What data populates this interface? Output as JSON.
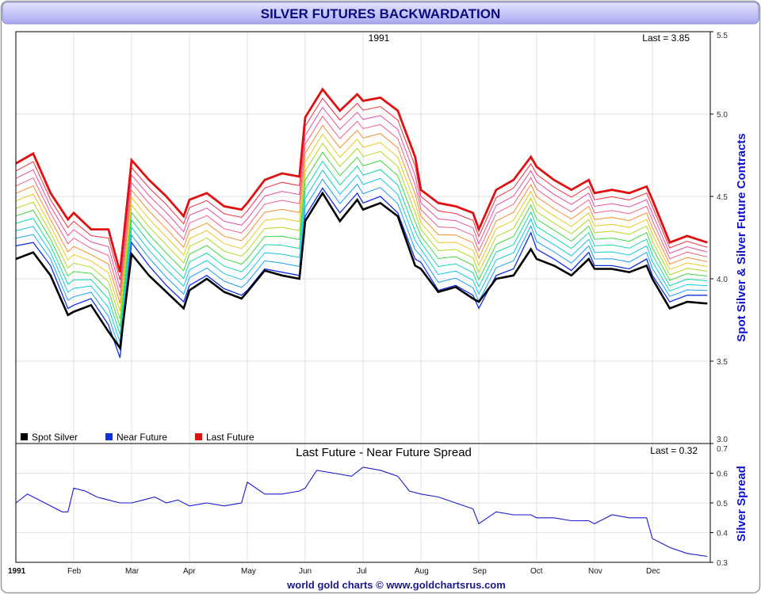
{
  "page": {
    "title": "SILVER FUTURES BACKWARDATION",
    "footer": "world gold charts © www.goldchartsrus.com"
  },
  "colors": {
    "title_text": "#0b0b80",
    "title_bar_top": "#e4e4ff",
    "title_bar_bottom": "#a9a9f0",
    "axis_label": "#1212cc",
    "spot": "#000000",
    "near": "#1030e0",
    "last": "#e01010",
    "spread": "#1a1ad0",
    "bands": [
      "#1aa0f0",
      "#10c8e0",
      "#10d8a8",
      "#40d840",
      "#b0d820",
      "#e8c820",
      "#f09030",
      "#f06080",
      "#e050a0",
      "#f03040"
    ]
  },
  "chart_data": [
    {
      "type": "line",
      "year_label": "1991",
      "last_label": "Last = 3.85",
      "ylabel": "Spot Silver & Silver Future Contracts",
      "ylim": [
        3.0,
        5.5
      ],
      "yticks": [
        "3.0",
        "3.5",
        "4.0",
        "4.5",
        "5.0",
        "5.5"
      ],
      "grid": true,
      "legend_position": "bottom-left",
      "legend": [
        {
          "label": "Spot Silver",
          "color": "#000000"
        },
        {
          "label": "Near Future",
          "color": "#1030e0"
        },
        {
          "label": "Last Future",
          "color": "#e01010"
        }
      ],
      "x_months": [
        0,
        0.3,
        0.6,
        0.9,
        1.0,
        1.3,
        1.6,
        1.8,
        2.0,
        2.3,
        2.6,
        2.9,
        3.0,
        3.3,
        3.6,
        3.9,
        4.0,
        4.3,
        4.6,
        4.9,
        5.0,
        5.3,
        5.6,
        5.9,
        6.0,
        6.3,
        6.6,
        6.9,
        7.0,
        7.3,
        7.6,
        7.9,
        8.0,
        8.3,
        8.6,
        8.9,
        9.0,
        9.3,
        9.6,
        9.9,
        10.0,
        10.3,
        10.6,
        10.9,
        11.0,
        11.3,
        11.6,
        11.95
      ],
      "spot": [
        4.12,
        4.16,
        4.02,
        3.78,
        3.8,
        3.84,
        3.68,
        3.58,
        4.15,
        4.02,
        3.92,
        3.82,
        3.93,
        4.0,
        3.92,
        3.88,
        3.92,
        4.05,
        4.02,
        4.0,
        4.35,
        4.52,
        4.35,
        4.48,
        4.42,
        4.46,
        4.38,
        4.08,
        4.06,
        3.92,
        3.95,
        3.88,
        3.86,
        4.0,
        4.02,
        4.18,
        4.12,
        4.08,
        4.02,
        4.12,
        4.06,
        4.06,
        4.04,
        4.08,
        4.0,
        3.82,
        3.86,
        3.85
      ],
      "near": [
        4.2,
        4.22,
        4.08,
        3.82,
        3.84,
        3.88,
        3.72,
        3.52,
        4.22,
        4.08,
        3.96,
        3.86,
        3.96,
        4.02,
        3.94,
        3.9,
        3.93,
        4.06,
        4.04,
        4.02,
        4.38,
        4.55,
        4.4,
        4.52,
        4.46,
        4.5,
        4.4,
        4.12,
        4.1,
        3.93,
        3.96,
        3.9,
        3.82,
        4.02,
        4.06,
        4.28,
        4.18,
        4.12,
        4.05,
        4.16,
        4.08,
        4.08,
        4.06,
        4.12,
        4.02,
        3.86,
        3.9,
        3.9
      ],
      "last": [
        4.7,
        4.76,
        4.52,
        4.36,
        4.4,
        4.3,
        4.3,
        4.04,
        4.72,
        4.6,
        4.5,
        4.38,
        4.48,
        4.52,
        4.44,
        4.42,
        4.46,
        4.6,
        4.64,
        4.62,
        4.98,
        5.15,
        5.02,
        5.12,
        5.08,
        5.1,
        5.02,
        4.74,
        4.54,
        4.46,
        4.44,
        4.4,
        4.3,
        4.54,
        4.6,
        4.74,
        4.68,
        4.6,
        4.54,
        4.6,
        4.52,
        4.54,
        4.52,
        4.56,
        4.48,
        4.22,
        4.26,
        4.22
      ],
      "month_labels": [
        {
          "m": 0,
          "label": "1991",
          "bold": true
        },
        {
          "m": 1,
          "label": "Feb"
        },
        {
          "m": 2,
          "label": "Mar"
        },
        {
          "m": 3,
          "label": "Apr"
        },
        {
          "m": 4,
          "label": "May"
        },
        {
          "m": 5,
          "label": "Jun"
        },
        {
          "m": 6,
          "label": "Jul"
        },
        {
          "m": 7,
          "label": "Aug"
        },
        {
          "m": 8,
          "label": "Sep"
        },
        {
          "m": 9,
          "label": "Oct"
        },
        {
          "m": 10,
          "label": "Nov"
        },
        {
          "m": 11,
          "label": "Dec"
        }
      ]
    },
    {
      "type": "line",
      "title": "Last Future - Near Future Spread",
      "last_label": "Last = 0.32",
      "ylabel": "Silver Spread",
      "ylim": [
        0.3,
        0.7
      ],
      "yticks": [
        "0.3",
        "0.4",
        "0.5",
        "0.6",
        "0.7"
      ],
      "grid": true,
      "x_months": [
        0,
        0.2,
        0.4,
        0.6,
        0.8,
        0.9,
        1.0,
        1.2,
        1.4,
        1.6,
        1.8,
        2.0,
        2.2,
        2.4,
        2.6,
        2.8,
        3.0,
        3.3,
        3.6,
        3.9,
        4.0,
        4.3,
        4.6,
        4.9,
        5.0,
        5.2,
        5.5,
        5.8,
        6.0,
        6.3,
        6.6,
        6.8,
        7.0,
        7.3,
        7.6,
        7.9,
        8.0,
        8.3,
        8.6,
        8.9,
        9.0,
        9.3,
        9.6,
        9.9,
        10.0,
        10.3,
        10.6,
        10.9,
        11.0,
        11.3,
        11.6,
        11.95
      ],
      "values": [
        0.5,
        0.53,
        0.51,
        0.49,
        0.47,
        0.47,
        0.55,
        0.54,
        0.52,
        0.51,
        0.5,
        0.5,
        0.51,
        0.52,
        0.5,
        0.51,
        0.49,
        0.5,
        0.49,
        0.5,
        0.57,
        0.53,
        0.53,
        0.54,
        0.55,
        0.61,
        0.6,
        0.59,
        0.62,
        0.61,
        0.59,
        0.54,
        0.53,
        0.52,
        0.5,
        0.48,
        0.43,
        0.47,
        0.46,
        0.46,
        0.45,
        0.45,
        0.44,
        0.44,
        0.43,
        0.46,
        0.45,
        0.45,
        0.38,
        0.35,
        0.33,
        0.32
      ]
    }
  ]
}
